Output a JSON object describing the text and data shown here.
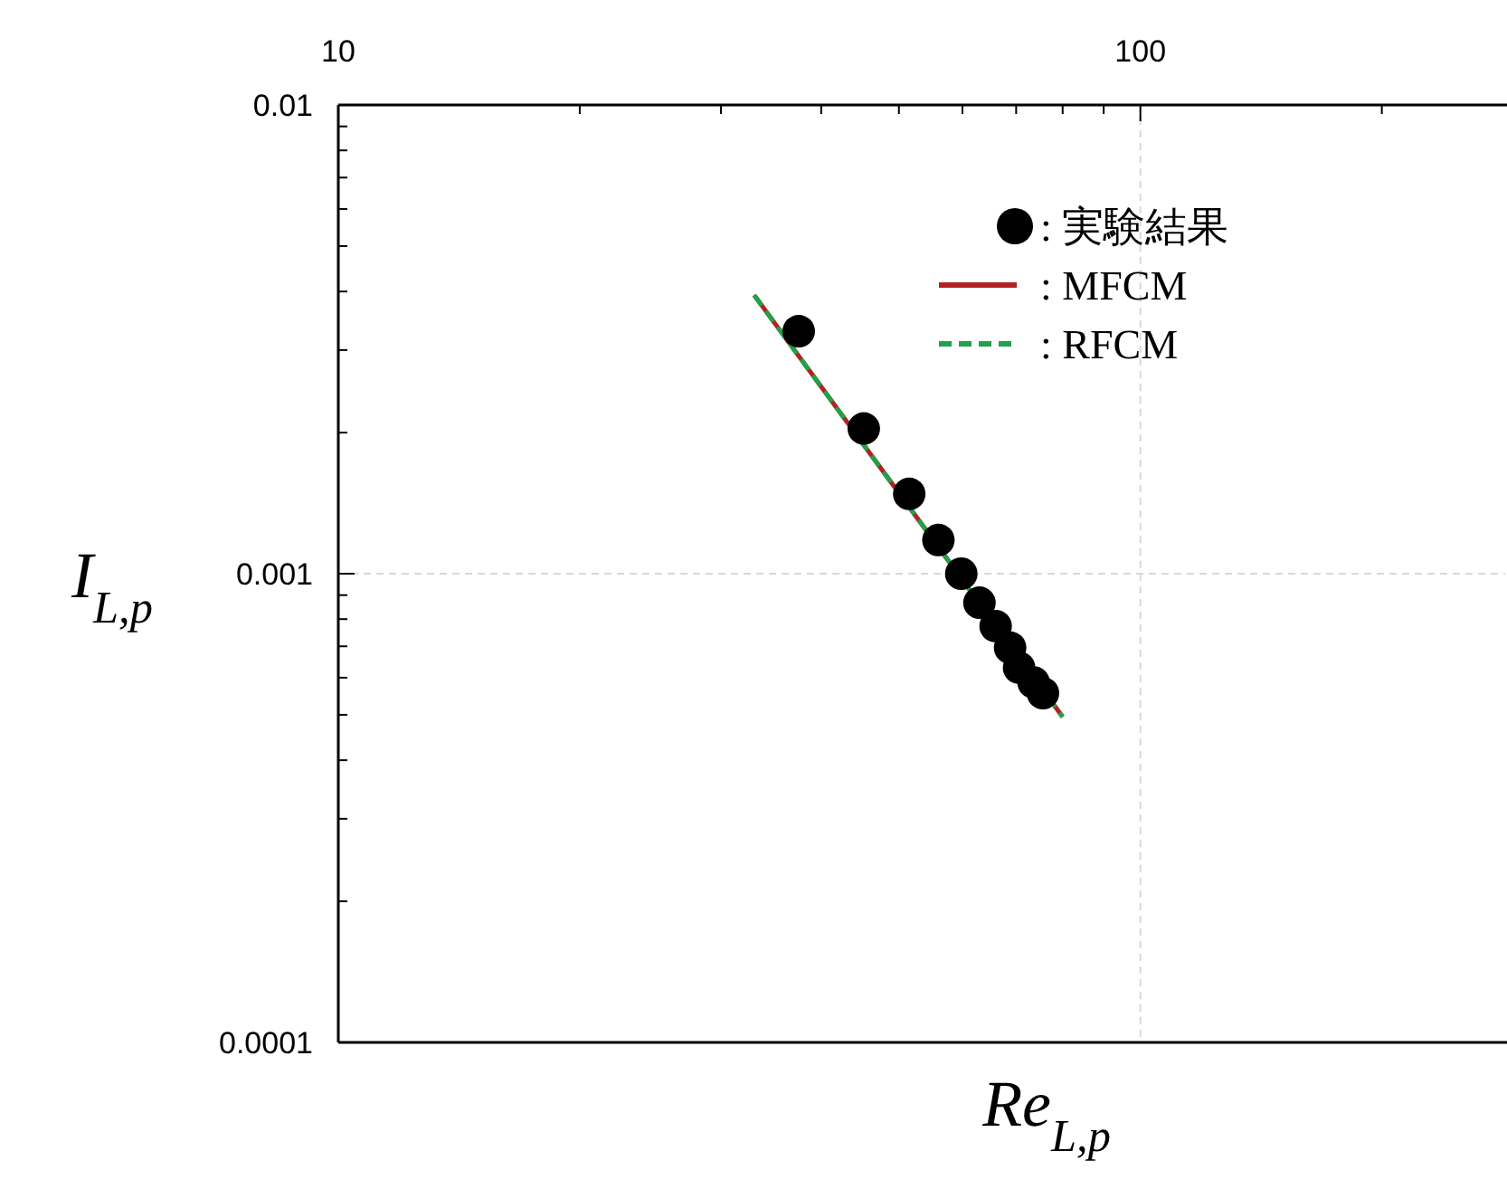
{
  "chart_data": {
    "type": "scatter",
    "xlabel": "Re$_{L,p}$",
    "ylabel": "I$_{L,p}$",
    "log": "xy",
    "xlim": [
      10,
      285
    ],
    "ylim": [
      0.0001,
      0.01
    ],
    "xticks": [
      10,
      100
    ],
    "yticks": [
      0.0001,
      0.001,
      0.01
    ],
    "grid": true,
    "legend": "top right",
    "series": [
      {
        "name": ": 実験結果",
        "marker": "circle",
        "color": "#000000",
        "x": [
          37.5,
          45.2,
          51.5,
          56.0,
          59.8,
          63.0,
          66.0,
          68.8,
          70.6,
          73.6,
          75.6
        ],
        "values": [
          0.00329,
          0.00204,
          0.00148,
          0.00118,
          0.001,
          0.000867,
          0.000773,
          0.000695,
          0.00063,
          0.000586,
          0.000556
        ]
      },
      {
        "name": ": MFCM",
        "type": "line",
        "line_style": "solid",
        "color": "#b22222",
        "x": [
          33,
          80
        ],
        "values": [
          0.00393,
          0.000495
        ]
      },
      {
        "name": ": RFCM",
        "type": "line",
        "line_style": "dashed",
        "color": "#22a04a",
        "x": [
          33,
          80
        ],
        "values": [
          0.00393,
          0.000495
        ]
      }
    ]
  }
}
